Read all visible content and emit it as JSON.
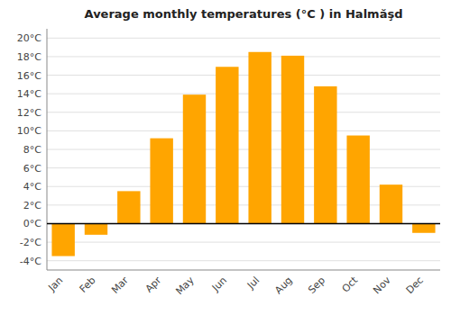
{
  "chart_data": {
    "type": "bar",
    "title": "Average monthly temperatures (°C ) in Halmăşd",
    "categories": [
      "Jan",
      "Feb",
      "Mar",
      "Apr",
      "May",
      "Jun",
      "Jul",
      "Aug",
      "Sep",
      "Oct",
      "Nov",
      "Dec"
    ],
    "values": [
      -3.5,
      -1.2,
      3.5,
      9.2,
      13.9,
      16.9,
      18.5,
      18.1,
      14.8,
      9.5,
      4.2,
      -1.0
    ],
    "color": "#FFA500",
    "ylim": [
      -5,
      21
    ],
    "yticks": [
      {
        "value": -4,
        "label": "-4°C"
      },
      {
        "value": -2,
        "label": "-2°C"
      },
      {
        "value": 0,
        "label": "0°C"
      },
      {
        "value": 2,
        "label": "2°C"
      },
      {
        "value": 4,
        "label": "4°C"
      },
      {
        "value": 6,
        "label": "6°C"
      },
      {
        "value": 8,
        "label": "8°C"
      },
      {
        "value": 10,
        "label": "10°C"
      },
      {
        "value": 12,
        "label": "12°C"
      },
      {
        "value": 14,
        "label": "14°C"
      },
      {
        "value": 16,
        "label": "16°C"
      },
      {
        "value": 18,
        "label": "18°C"
      },
      {
        "value": 20,
        "label": "20°C"
      }
    ],
    "grid": true
  }
}
